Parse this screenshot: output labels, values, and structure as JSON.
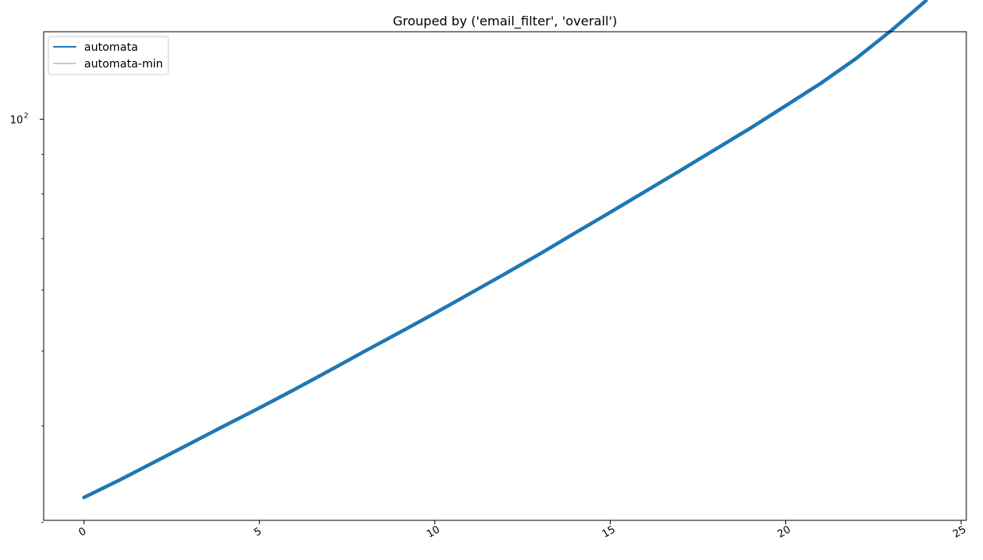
{
  "chart_data": {
    "type": "line",
    "title": "Grouped by ('email_filter', 'overall')",
    "xlabel": "",
    "ylabel": "",
    "x_ticks": [
      "0",
      "5",
      "10",
      "15",
      "20",
      "25"
    ],
    "y_ticks": [
      {
        "base": "10",
        "exp": "2",
        "value": 100
      }
    ],
    "xlim": [
      -1.15,
      25.15
    ],
    "ylim_log10": [
      1.4795,
      2.1135
    ],
    "y_scale": "log",
    "grid": false,
    "legend_position": "upper left",
    "series": [
      {
        "name": "automata",
        "color": "#1f77b4",
        "x": [
          0,
          1,
          2,
          3,
          4,
          5,
          6,
          7,
          8,
          9,
          10,
          11,
          12,
          13,
          14,
          15,
          16,
          17,
          18,
          19,
          20,
          21,
          22,
          23,
          24
        ],
        "y": [
          32.3,
          34.0,
          35.9,
          37.9,
          40.0,
          42.2,
          44.6,
          47.2,
          50.0,
          52.9,
          56.0,
          59.4,
          63.0,
          66.9,
          71.2,
          75.7,
          80.6,
          85.8,
          91.4,
          97.4,
          104.1,
          111.3,
          119.8,
          130.2,
          142.5
        ]
      },
      {
        "name": "automata-min",
        "color": "#a6d8ea",
        "x": [],
        "y": []
      }
    ]
  }
}
